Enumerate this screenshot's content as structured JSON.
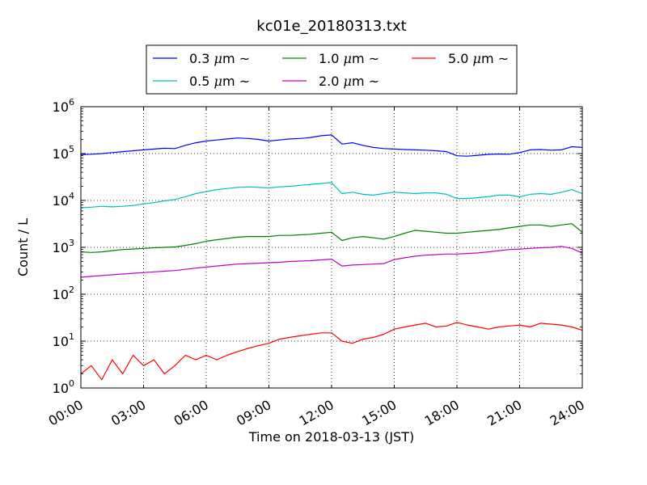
{
  "chart_data": {
    "type": "line",
    "title": "kc01e_20180313.txt",
    "xlabel": "Time on 2018-03-13 (JST)",
    "ylabel": "Count / L",
    "y_scale": "log",
    "ylim": [
      1,
      1000000
    ],
    "xlim": [
      "00:00",
      "24:00"
    ],
    "grid": true,
    "legend_position": "top-center",
    "x_ticks": [
      "00:00",
      "03:00",
      "06:00",
      "09:00",
      "12:00",
      "15:00",
      "18:00",
      "21:00",
      "24:00"
    ],
    "y_ticks": [
      {
        "base": "10",
        "exp": "0",
        "value": 1
      },
      {
        "base": "10",
        "exp": "1",
        "value": 10
      },
      {
        "base": "10",
        "exp": "2",
        "value": 100
      },
      {
        "base": "10",
        "exp": "3",
        "value": 1000
      },
      {
        "base": "10",
        "exp": "4",
        "value": 10000
      },
      {
        "base": "10",
        "exp": "5",
        "value": 100000
      },
      {
        "base": "10",
        "exp": "6",
        "value": 1000000
      }
    ],
    "x": [
      0.0,
      0.5,
      1.0,
      1.5,
      2.0,
      2.5,
      3.0,
      3.5,
      4.0,
      4.5,
      5.0,
      5.5,
      6.0,
      6.5,
      7.0,
      7.5,
      8.0,
      8.5,
      9.0,
      9.5,
      10.0,
      10.5,
      11.0,
      11.5,
      12.0,
      12.5,
      13.0,
      13.5,
      14.0,
      14.5,
      15.0,
      15.5,
      16.0,
      16.5,
      17.0,
      17.5,
      18.0,
      18.5,
      19.0,
      19.5,
      20.0,
      20.5,
      21.0,
      21.5,
      22.0,
      22.5,
      23.0,
      23.5,
      24.0
    ],
    "x_unit": "hours since 00:00",
    "series": [
      {
        "name": "0.3 μm ~",
        "name_size": "0.3",
        "name_unit": "μm",
        "name_suffix": "~",
        "color": "#0000ff",
        "values": [
          95000,
          97000,
          100000,
          105000,
          110000,
          115000,
          120000,
          125000,
          130000,
          128000,
          150000,
          170000,
          185000,
          195000,
          205000,
          215000,
          210000,
          200000,
          185000,
          195000,
          205000,
          210000,
          220000,
          240000,
          250000,
          160000,
          170000,
          150000,
          135000,
          128000,
          125000,
          122000,
          120000,
          118000,
          115000,
          110000,
          90000,
          88000,
          92000,
          96000,
          98000,
          97000,
          105000,
          120000,
          122000,
          118000,
          120000,
          140000,
          135000
        ]
      },
      {
        "name": "0.5 μm ~",
        "name_size": "0.5",
        "name_unit": "μm",
        "name_suffix": "~",
        "color": "#00bfbf",
        "values": [
          7000,
          7200,
          7500,
          7300,
          7500,
          7800,
          8500,
          9000,
          9800,
          10500,
          12000,
          14000,
          15500,
          17000,
          18000,
          19000,
          19500,
          19000,
          18500,
          19500,
          20000,
          21000,
          22000,
          23000,
          24000,
          14000,
          15000,
          13500,
          13000,
          14000,
          15000,
          14500,
          14000,
          14500,
          14500,
          13500,
          11000,
          11000,
          11500,
          12000,
          13000,
          13000,
          12000,
          13500,
          14000,
          13500,
          15000,
          17000,
          14000
        ]
      },
      {
        "name": "1.0 μm ~",
        "name_size": "1.0",
        "name_unit": "μm",
        "name_suffix": "~",
        "color": "#008000",
        "values": [
          800,
          780,
          800,
          850,
          900,
          920,
          950,
          980,
          1000,
          1020,
          1100,
          1200,
          1350,
          1450,
          1550,
          1650,
          1700,
          1700,
          1700,
          1800,
          1800,
          1850,
          1900,
          2000,
          2100,
          1400,
          1600,
          1700,
          1600,
          1500,
          1700,
          2000,
          2300,
          2200,
          2100,
          2000,
          2000,
          2100,
          2200,
          2300,
          2400,
          2600,
          2800,
          3000,
          3000,
          2800,
          3000,
          3200,
          2100
        ]
      },
      {
        "name": "2.0 μm ~",
        "name_size": "2.0",
        "name_unit": "μm",
        "name_suffix": "~",
        "color": "#bf00bf",
        "values": [
          230,
          240,
          250,
          260,
          270,
          280,
          290,
          300,
          310,
          320,
          340,
          360,
          380,
          400,
          420,
          440,
          450,
          460,
          470,
          480,
          500,
          510,
          520,
          540,
          560,
          400,
          420,
          430,
          440,
          450,
          550,
          600,
          650,
          680,
          700,
          720,
          720,
          740,
          760,
          800,
          850,
          900,
          920,
          950,
          980,
          1000,
          1050,
          950,
          750
        ]
      },
      {
        "name": "5.0 μm ~",
        "name_size": "5.0",
        "name_unit": "μm",
        "name_suffix": "~",
        "color": "#ff0000",
        "values": [
          2,
          3,
          1.5,
          4,
          2,
          5,
          3,
          4,
          2,
          3,
          5,
          4,
          5,
          4,
          5,
          6,
          7,
          8,
          9,
          11,
          12,
          13,
          14,
          15,
          15,
          10,
          9,
          11,
          12,
          14,
          18,
          20,
          22,
          24,
          20,
          21,
          25,
          22,
          20,
          18,
          20,
          21,
          22,
          20,
          24,
          23,
          22,
          20,
          17
        ]
      }
    ]
  }
}
